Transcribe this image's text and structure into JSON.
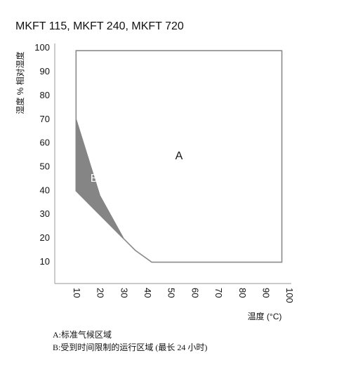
{
  "chart_data": {
    "type": "region",
    "title": "MKFT 115, MKFT 240, MKFT 720",
    "x_label": "温度 (°C)",
    "y_label": "湿度 % 相对湿度",
    "regions": [
      {
        "name": "A",
        "color": "#ffffff",
        "stroke": "#8a8a8a",
        "x": [
          10,
          97,
          97,
          42,
          35,
          30,
          20,
          10
        ],
        "y": [
          99,
          99,
          10,
          10,
          15,
          20,
          38,
          70
        ]
      },
      {
        "name": "B",
        "color": "#858585",
        "stroke": "#858585",
        "x": [
          10,
          20,
          30,
          10
        ],
        "y": [
          70,
          38,
          20,
          40
        ]
      }
    ],
    "xlim": [
      1,
      101
    ],
    "xticks": [
      10,
      20,
      30,
      40,
      50,
      60,
      70,
      80,
      90,
      100
    ],
    "ylim": [
      1,
      102
    ],
    "yticks": [
      10,
      20,
      30,
      40,
      50,
      60,
      70,
      80,
      90,
      100
    ],
    "grid": false,
    "legend": [
      "A:标准气候区域",
      "B:受到时间限制的运行区域 (最长 24 小时)"
    ]
  }
}
